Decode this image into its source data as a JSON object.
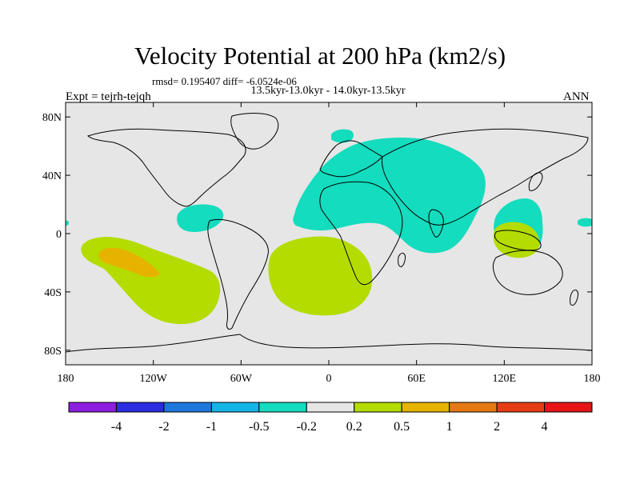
{
  "chart_data": {
    "type": "filled contour map",
    "title": "Velocity Potential at 200 hPa (km2/s)",
    "stats_text": "rmsd= 0.195407 diff= -6.0524e-06",
    "period_text": "13.5kyr-13.0kyr - 14.0kyr-13.5kyr",
    "experiment_text": "Expt = tejrh-tejqh",
    "season": "ANN",
    "rmsd": 0.195407,
    "diff": -6.0524e-06,
    "x_ticks": [
      {
        "value": -180,
        "label": "180"
      },
      {
        "value": -120,
        "label": "120W"
      },
      {
        "value": -60,
        "label": "60W"
      },
      {
        "value": 0,
        "label": "0"
      },
      {
        "value": 60,
        "label": "60E"
      },
      {
        "value": 120,
        "label": "120E"
      },
      {
        "value": 180,
        "label": "180"
      }
    ],
    "y_ticks": [
      {
        "value": 80,
        "label": "80N"
      },
      {
        "value": 40,
        "label": "40N"
      },
      {
        "value": 0,
        "label": "0"
      },
      {
        "value": -40,
        "label": "40S"
      },
      {
        "value": -80,
        "label": "80S"
      }
    ],
    "lon_range": [
      -180,
      180
    ],
    "lat_range": [
      -90,
      90
    ],
    "colorbar": {
      "levels": [
        "-4",
        "-2",
        "-1",
        "-0.5",
        "-0.2",
        "0.2",
        "0.5",
        "1",
        "2",
        "4"
      ],
      "colors": [
        "#8c1ee0",
        "#2c2ce0",
        "#1e78dc",
        "#14b4e6",
        "#14dcbe",
        "#e6e6e6",
        "#b4dc00",
        "#e6b400",
        "#e67814",
        "#e63c14",
        "#e61414"
      ]
    },
    "regions": [
      {
        "name": "eurasia-africa-negative",
        "class": "-0.5 to -0.2",
        "color": "#14dcbe",
        "lon_center": 58,
        "lat_center": 28,
        "lon_span": 95,
        "lat_span": 88
      },
      {
        "name": "scandinavia-negative",
        "class": "-0.5 to -0.2",
        "color": "#14dcbe",
        "lon_center": 2,
        "lat_center": 70,
        "lon_span": 14,
        "lat_span": 10
      },
      {
        "name": "caribbean-negative",
        "class": "-0.5 to -0.2",
        "color": "#14dcbe",
        "lon_center": -80,
        "lat_center": 14,
        "lon_span": 30,
        "lat_span": 20
      },
      {
        "name": "maritime-continent-negative",
        "class": "-0.5 to -0.2",
        "color": "#14dcbe",
        "lon_center": 126,
        "lat_center": 6,
        "lon_span": 24,
        "lat_span": 30
      },
      {
        "name": "central-pacific-negative",
        "class": "-0.5 to -0.2",
        "color": "#14dcbe",
        "lon_center": 175,
        "lat_center": 6,
        "lon_span": 8,
        "lat_span": 4
      },
      {
        "name": "south-pacific-positive",
        "class": "0.2 to 0.5",
        "color": "#b4dc00",
        "lon_center": -135,
        "lat_center": -22,
        "lon_span": 90,
        "lat_span": 50
      },
      {
        "name": "south-atlantic-positive",
        "class": "0.2 to 0.5",
        "color": "#b4dc00",
        "lon_center": -12,
        "lat_center": -17,
        "lon_span": 72,
        "lat_span": 50
      },
      {
        "name": "indonesia-positive",
        "class": "0.2 to 0.5",
        "color": "#b4dc00",
        "lon_center": 120,
        "lat_center": -2,
        "lon_span": 26,
        "lat_span": 20
      },
      {
        "name": "pacific-core-positive",
        "class": "0.5 to 1",
        "color": "#e6b400",
        "lon_center": -150,
        "lat_center": -17,
        "lon_span": 40,
        "lat_span": 16
      }
    ]
  }
}
